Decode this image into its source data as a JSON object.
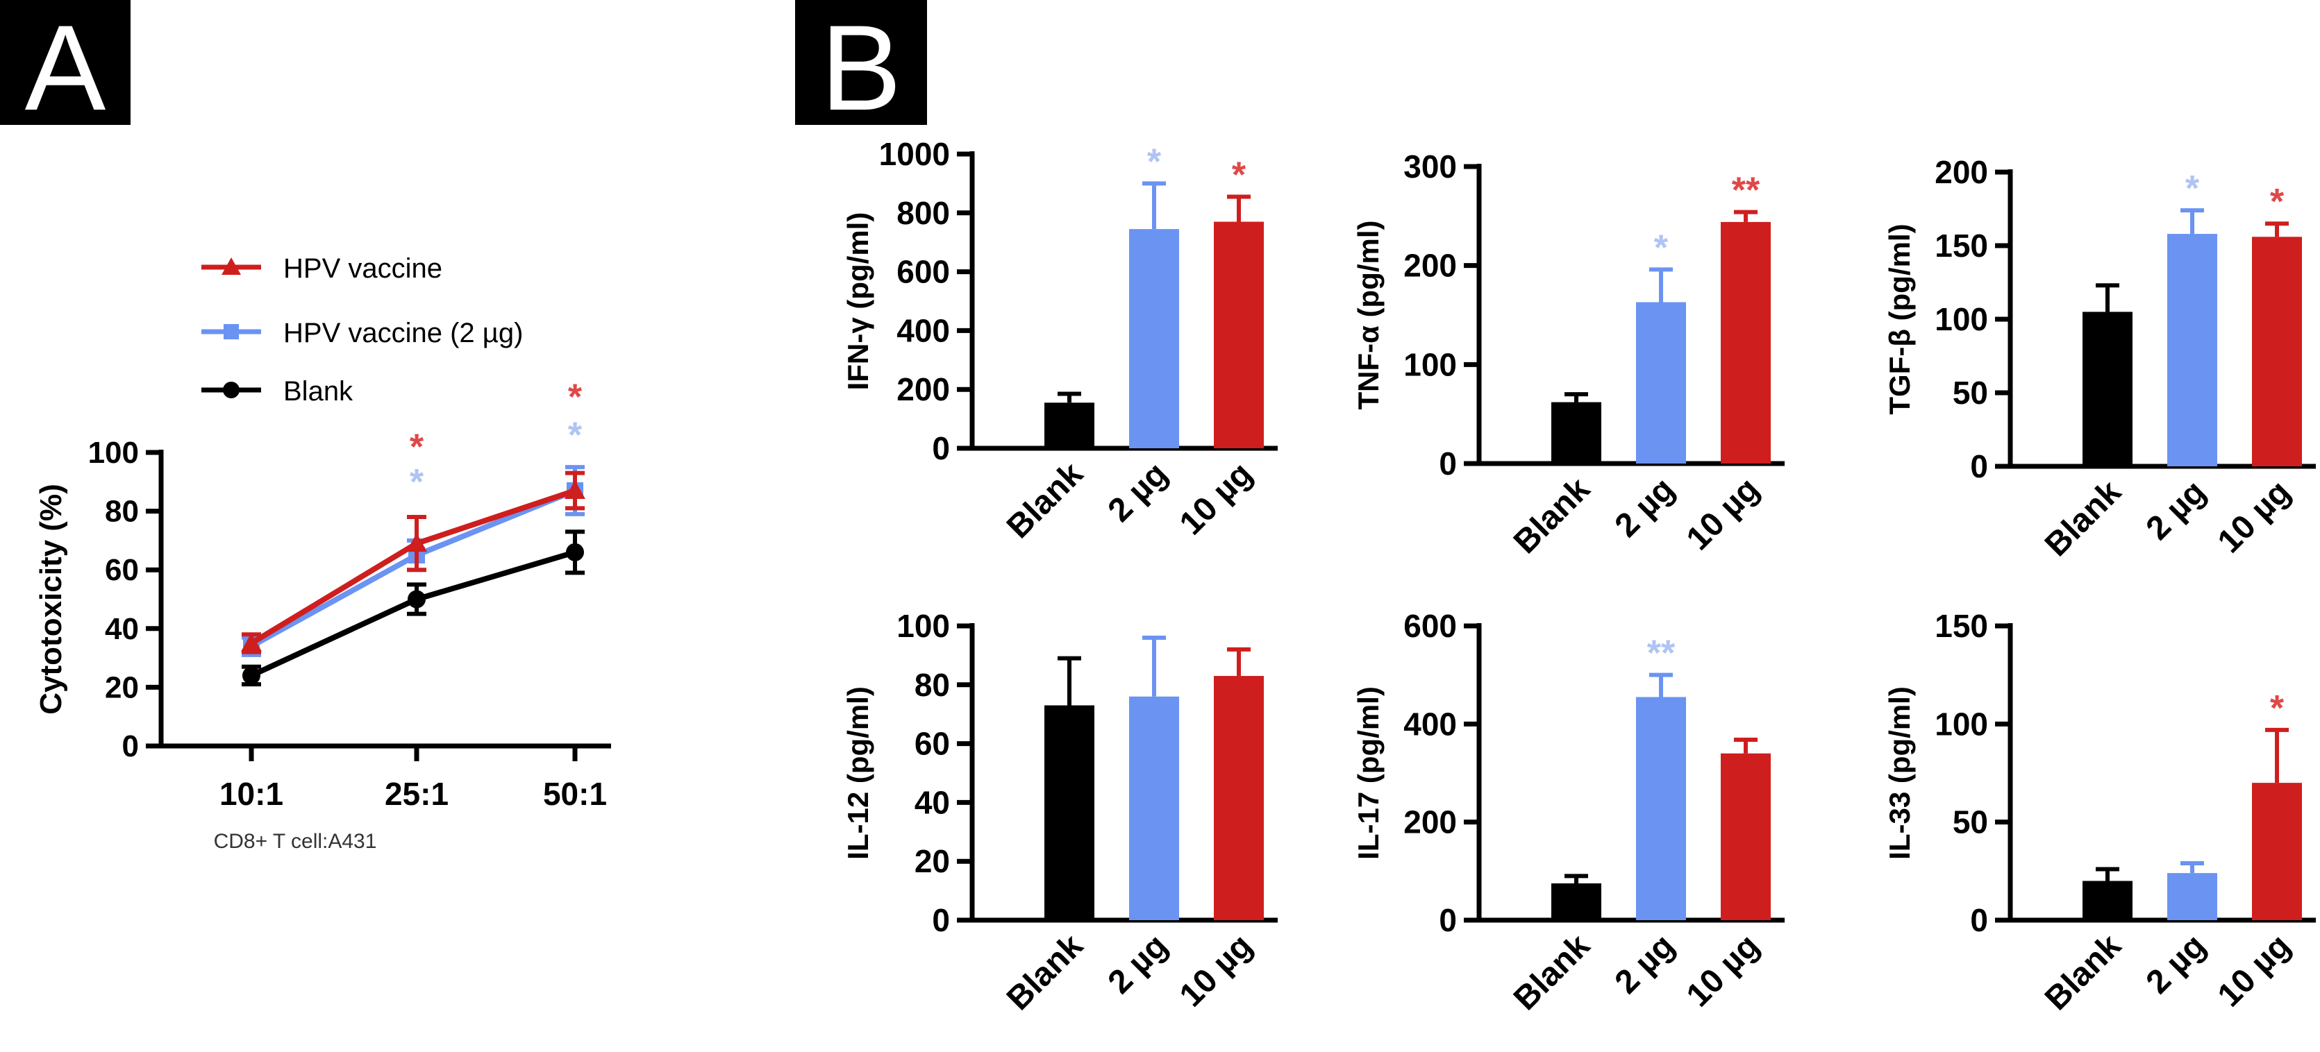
{
  "panels": {
    "a_label": "A",
    "b_label": "B"
  },
  "colors": {
    "blank": "#000000",
    "low_dose": "#6A93F2",
    "high_dose": "#CF1E1E",
    "low_dose_star": "#AFC4F3",
    "high_dose_star": "#E04848",
    "panel_label_bg": "#000000",
    "panel_label_fg": "#FFFFFF"
  },
  "chart_data": [
    {
      "type": "line",
      "panel": "A",
      "categories": [
        "10:1",
        "25:1",
        "50:1"
      ],
      "ylabel": "Cytotoxicity (%)",
      "xlabel": "CD8+ T cell:A431",
      "ylim": [
        0,
        100
      ],
      "yticks": [
        "0",
        "20",
        "40",
        "60",
        "80",
        "100"
      ],
      "legend_position": "top-left",
      "series": [
        {
          "name": "HPV vaccine",
          "color": "#CF1E1E",
          "marker": "triangle",
          "values": [
            35,
            69,
            87
          ],
          "errors": [
            3,
            9,
            6
          ]
        },
        {
          "name": "HPV vaccine (2 µg)",
          "color": "#6A93F2",
          "marker": "square",
          "values": [
            34,
            65,
            87
          ],
          "errors": [
            3,
            5,
            8
          ]
        },
        {
          "name": "Blank",
          "color": "#000000",
          "marker": "circle",
          "values": [
            24,
            50,
            66
          ],
          "errors": [
            3,
            5,
            7
          ]
        }
      ],
      "annotations": [
        {
          "category": "25:1",
          "text": "*",
          "color": "#E04848",
          "y": 103
        },
        {
          "category": "25:1",
          "text": "*",
          "color": "#AFC4F3",
          "y": 91
        },
        {
          "category": "50:1",
          "text": "*",
          "color": "#E04848",
          "y": 120
        },
        {
          "category": "50:1",
          "text": "*",
          "color": "#AFC4F3",
          "y": 107
        }
      ]
    },
    {
      "type": "bar",
      "panel": "B",
      "ylabel": "IFN-γ (pg/ml)",
      "categories": [
        "Blank",
        "2 µg",
        "10 µg"
      ],
      "values": [
        155,
        745,
        770
      ],
      "errors": [
        30,
        155,
        85
      ],
      "ylim": [
        0,
        1000
      ],
      "yticks": [
        "0",
        "200",
        "400",
        "600",
        "800",
        "1000"
      ],
      "significance": [
        "",
        "*",
        "*"
      ]
    },
    {
      "type": "bar",
      "panel": "B",
      "ylabel": "TNF-α (pg/ml)",
      "categories": [
        "Blank",
        "2 µg",
        "10 µg"
      ],
      "values": [
        62,
        163,
        244
      ],
      "errors": [
        8,
        33,
        10
      ],
      "ylim": [
        0,
        300
      ],
      "yticks": [
        "0",
        "100",
        "200",
        "300"
      ],
      "significance": [
        "",
        "*",
        "**"
      ]
    },
    {
      "type": "bar",
      "panel": "B",
      "ylabel": "TGF-β (pg/ml)",
      "categories": [
        "Blank",
        "2 µg",
        "10 µg"
      ],
      "values": [
        105,
        158,
        156
      ],
      "errors": [
        18,
        16,
        9
      ],
      "ylim": [
        0,
        200
      ],
      "yticks": [
        "0",
        "50",
        "100",
        "150",
        "200"
      ],
      "significance": [
        "",
        "*",
        "*"
      ]
    },
    {
      "type": "bar",
      "panel": "B",
      "ylabel": "IL-12 (pg/ml)",
      "categories": [
        "Blank",
        "2 µg",
        "10 µg"
      ],
      "values": [
        73,
        76,
        83
      ],
      "errors": [
        16,
        20,
        9
      ],
      "ylim": [
        0,
        100
      ],
      "yticks": [
        "0",
        "20",
        "40",
        "60",
        "80",
        "100"
      ],
      "significance": [
        "",
        "",
        ""
      ]
    },
    {
      "type": "bar",
      "panel": "B",
      "ylabel": "IL-17 (pg/ml)",
      "categories": [
        "Blank",
        "2 µg",
        "10 µg"
      ],
      "values": [
        75,
        455,
        340
      ],
      "errors": [
        15,
        45,
        28
      ],
      "ylim": [
        0,
        600
      ],
      "yticks": [
        "0",
        "200",
        "400",
        "600"
      ],
      "significance": [
        "",
        "**",
        ""
      ]
    },
    {
      "type": "bar",
      "panel": "B",
      "ylabel": "IL-33 (pg/ml)",
      "categories": [
        "Blank",
        "2 µg",
        "10 µg"
      ],
      "values": [
        20,
        24,
        70
      ],
      "errors": [
        6,
        5,
        27
      ],
      "ylim": [
        0,
        150
      ],
      "yticks": [
        "0",
        "50",
        "100",
        "150"
      ],
      "significance": [
        "",
        "",
        "*"
      ]
    }
  ]
}
